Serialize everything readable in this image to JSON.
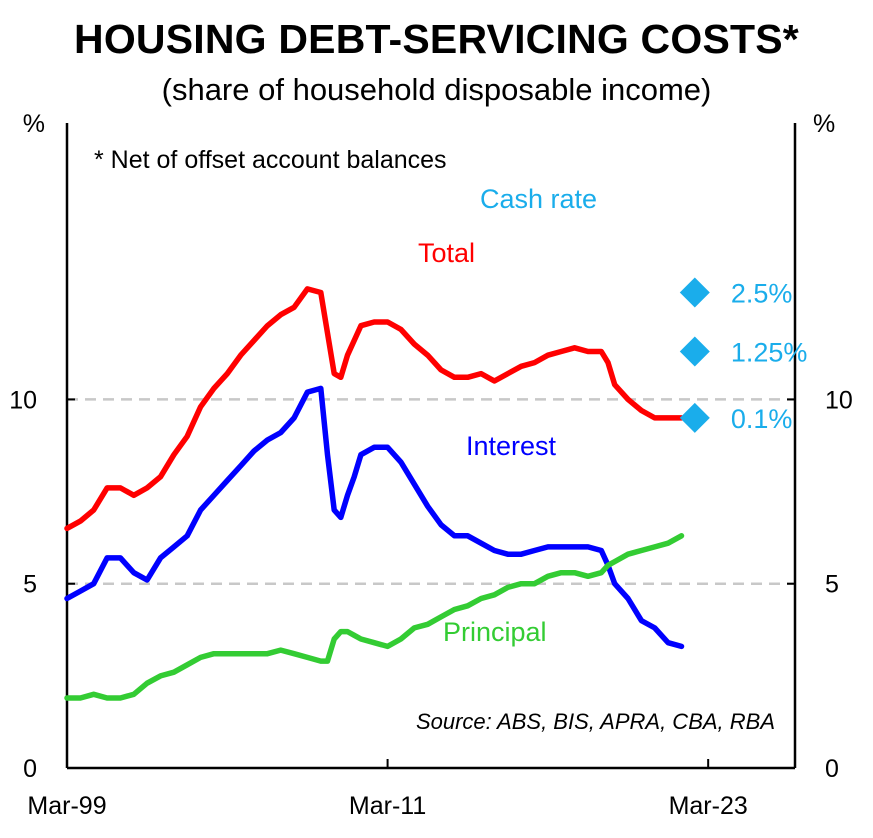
{
  "chart_data": {
    "type": "line",
    "title": "HOUSING DEBT-SERVICING COSTS*",
    "subtitle": "(share of household disposable income)",
    "y_unit_left": "%",
    "y_unit_right": "%",
    "ylim": [
      0,
      17.5
    ],
    "xlim": [
      1999.0,
      2026.25
    ],
    "yticks": [
      0,
      5,
      10
    ],
    "ytick_labels": [
      "0",
      "5",
      "10"
    ],
    "xticks": [
      1999.0,
      2011.0,
      2023.0
    ],
    "xtick_labels": [
      "Mar-99",
      "Mar-11",
      "Mar-23"
    ],
    "grid_dashed_at": [
      5,
      10
    ],
    "note": "* Net of offset account balances",
    "source": "Source: ABS, BIS, APRA, CBA, RBA",
    "cash_rate": {
      "label": "Cash rate",
      "color": "#1AADEB",
      "points": [
        {
          "x": 2022.5,
          "y": 12.9,
          "label": "2.5%"
        },
        {
          "x": 2022.5,
          "y": 11.3,
          "label": "1.25%"
        },
        {
          "x": 2022.5,
          "y": 9.5,
          "label": "0.1%"
        }
      ]
    },
    "series": [
      {
        "name": "Total",
        "color": "#FF0000",
        "x": [
          1999.0,
          1999.5,
          2000.0,
          2000.5,
          2001.0,
          2001.5,
          2002.0,
          2002.5,
          2003.0,
          2003.5,
          2004.0,
          2004.5,
          2005.0,
          2005.5,
          2006.0,
          2006.5,
          2007.0,
          2007.5,
          2008.0,
          2008.5,
          2008.75,
          2009.0,
          2009.25,
          2009.5,
          2009.75,
          2010.0,
          2010.5,
          2011.0,
          2011.5,
          2012.0,
          2012.5,
          2013.0,
          2013.5,
          2014.0,
          2014.5,
          2015.0,
          2015.5,
          2016.0,
          2016.5,
          2017.0,
          2017.5,
          2018.0,
          2018.5,
          2019.0,
          2019.25,
          2019.5,
          2020.0,
          2020.5,
          2021.0,
          2021.5,
          2022.0
        ],
        "values": [
          6.5,
          6.7,
          7.0,
          7.6,
          7.6,
          7.4,
          7.6,
          7.9,
          8.5,
          9.0,
          9.8,
          10.3,
          10.7,
          11.2,
          11.6,
          12.0,
          12.3,
          12.5,
          13.0,
          12.9,
          11.8,
          10.7,
          10.6,
          11.2,
          11.6,
          12.0,
          12.1,
          12.1,
          11.9,
          11.5,
          11.2,
          10.8,
          10.6,
          10.6,
          10.7,
          10.5,
          10.7,
          10.9,
          11.0,
          11.2,
          11.3,
          11.4,
          11.3,
          11.3,
          11.0,
          10.4,
          10.0,
          9.7,
          9.5,
          9.5,
          9.5
        ]
      },
      {
        "name": "Interest",
        "color": "#0000FF",
        "x": [
          1999.0,
          1999.5,
          2000.0,
          2000.5,
          2001.0,
          2001.5,
          2002.0,
          2002.5,
          2003.0,
          2003.5,
          2004.0,
          2004.5,
          2005.0,
          2005.5,
          2006.0,
          2006.5,
          2007.0,
          2007.5,
          2008.0,
          2008.5,
          2008.75,
          2009.0,
          2009.25,
          2009.5,
          2009.75,
          2010.0,
          2010.5,
          2011.0,
          2011.5,
          2012.0,
          2012.5,
          2013.0,
          2013.5,
          2014.0,
          2014.5,
          2015.0,
          2015.5,
          2016.0,
          2016.5,
          2017.0,
          2017.5,
          2018.0,
          2018.5,
          2019.0,
          2019.25,
          2019.5,
          2020.0,
          2020.5,
          2021.0,
          2021.5,
          2022.0
        ],
        "values": [
          4.6,
          4.8,
          5.0,
          5.7,
          5.7,
          5.3,
          5.1,
          5.7,
          6.0,
          6.3,
          7.0,
          7.4,
          7.8,
          8.2,
          8.6,
          8.9,
          9.1,
          9.5,
          10.2,
          10.3,
          8.5,
          7.0,
          6.8,
          7.4,
          7.9,
          8.5,
          8.7,
          8.7,
          8.3,
          7.7,
          7.1,
          6.6,
          6.3,
          6.3,
          6.1,
          5.9,
          5.8,
          5.8,
          5.9,
          6.0,
          6.0,
          6.0,
          6.0,
          5.9,
          5.5,
          5.0,
          4.6,
          4.0,
          3.8,
          3.4,
          3.3
        ]
      },
      {
        "name": "Principal",
        "color": "#33CC33",
        "x": [
          1999.0,
          1999.5,
          2000.0,
          2000.5,
          2001.0,
          2001.5,
          2002.0,
          2002.5,
          2003.0,
          2003.5,
          2004.0,
          2004.5,
          2005.0,
          2005.5,
          2006.0,
          2006.5,
          2007.0,
          2007.5,
          2008.0,
          2008.5,
          2008.75,
          2009.0,
          2009.25,
          2009.5,
          2009.75,
          2010.0,
          2010.5,
          2011.0,
          2011.5,
          2012.0,
          2012.5,
          2013.0,
          2013.5,
          2014.0,
          2014.5,
          2015.0,
          2015.5,
          2016.0,
          2016.5,
          2017.0,
          2017.5,
          2018.0,
          2018.5,
          2019.0,
          2019.25,
          2019.5,
          2020.0,
          2020.5,
          2021.0,
          2021.5,
          2022.0
        ],
        "values": [
          1.9,
          1.9,
          2.0,
          1.9,
          1.9,
          2.0,
          2.3,
          2.5,
          2.6,
          2.8,
          3.0,
          3.1,
          3.1,
          3.1,
          3.1,
          3.1,
          3.2,
          3.1,
          3.0,
          2.9,
          2.9,
          3.5,
          3.7,
          3.7,
          3.6,
          3.5,
          3.4,
          3.3,
          3.5,
          3.8,
          3.9,
          4.1,
          4.3,
          4.4,
          4.6,
          4.7,
          4.9,
          5.0,
          5.0,
          5.2,
          5.3,
          5.3,
          5.2,
          5.3,
          5.5,
          5.6,
          5.8,
          5.9,
          6.0,
          6.1,
          6.3
        ]
      }
    ],
    "series_label_texts": {
      "total": "Total",
      "interest": "Interest",
      "principal": "Principal"
    }
  }
}
